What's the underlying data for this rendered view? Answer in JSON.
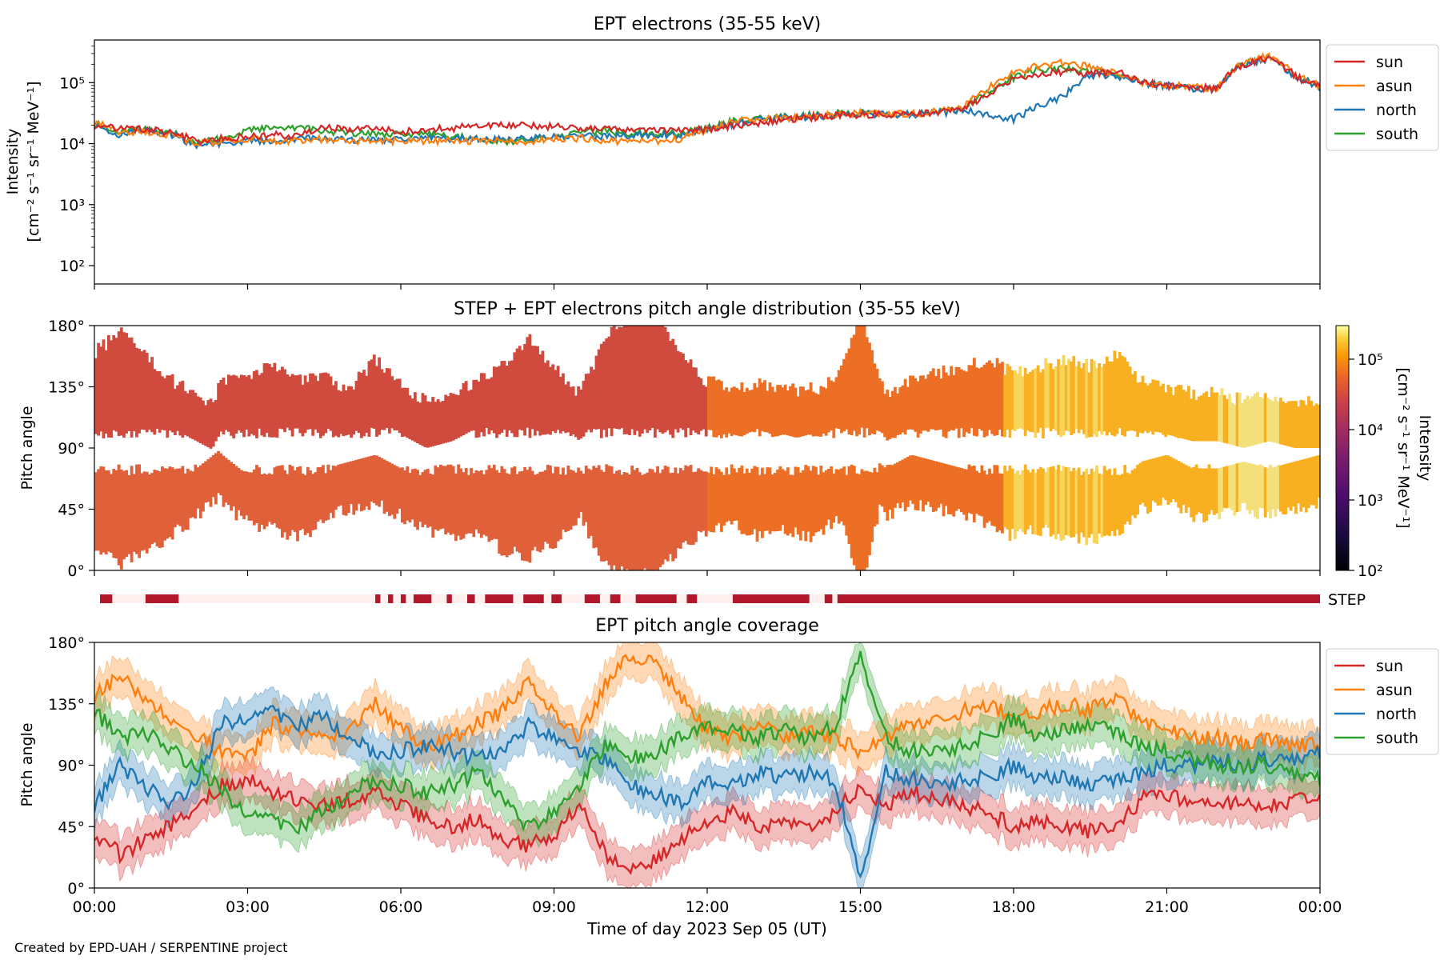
{
  "credit": "Created by EPD-UAH / SERPENTINE project",
  "xlabel": "Time of day 2023 Sep 05 (UT)",
  "x_ticks": [
    "00:00",
    "03:00",
    "06:00",
    "09:00",
    "12:00",
    "15:00",
    "18:00",
    "21:00",
    "00:00"
  ],
  "colors": {
    "sun": "#d62728",
    "asun": "#ff7f0e",
    "north": "#1f77b4",
    "south": "#2ca02c",
    "step_bar": "#b2182b",
    "step_bg": "#fdf0ee"
  },
  "chart_data": [
    {
      "type": "line",
      "title": "EPT electrons (35-55 keV)",
      "ylabel": "Intensity",
      "yunit": "[cm⁻² s⁻¹ sr⁻¹ MeV⁻¹]",
      "yscale": "log",
      "ylim": [
        50,
        500000
      ],
      "ytick_labels": [
        "10²",
        "10³",
        "10⁴",
        "10⁵"
      ],
      "ytick_values": [
        100,
        1000,
        10000,
        100000
      ],
      "xlim_hours": [
        0,
        24
      ],
      "legend": "right",
      "x_hours": [
        0,
        0.5,
        1,
        1.5,
        2,
        2.5,
        3,
        3.5,
        4,
        4.5,
        5,
        5.5,
        6,
        6.5,
        7,
        7.5,
        8,
        8.5,
        9,
        9.5,
        10,
        10.5,
        11,
        11.5,
        12,
        12.5,
        13,
        13.5,
        14,
        14.5,
        15,
        15.5,
        16,
        16.5,
        17,
        17.5,
        18,
        18.5,
        19,
        19.5,
        20,
        20.5,
        21,
        21.5,
        22,
        22.5,
        23,
        23.5,
        24
      ],
      "series": [
        {
          "name": "sun",
          "values": [
            20000,
            18000,
            17000,
            15000,
            11000,
            12000,
            13000,
            14000,
            13000,
            18000,
            17000,
            18000,
            16000,
            17000,
            18000,
            19000,
            20000,
            20000,
            19000,
            18000,
            18000,
            17000,
            17000,
            17000,
            17000,
            20000,
            22000,
            25000,
            27000,
            29000,
            30000,
            30000,
            31000,
            32000,
            35000,
            60000,
            110000,
            140000,
            150000,
            140000,
            150000,
            100000,
            90000,
            85000,
            80000,
            200000,
            260000,
            130000,
            85000
          ]
        },
        {
          "name": "asun",
          "values": [
            22000,
            15000,
            16000,
            14000,
            10000,
            11000,
            12000,
            11000,
            11000,
            12000,
            11000,
            11000,
            11000,
            11000,
            11000,
            11000,
            11000,
            11000,
            12000,
            12000,
            11000,
            11000,
            11000,
            12000,
            17000,
            22000,
            25000,
            26000,
            28000,
            30000,
            32000,
            30000,
            31000,
            33000,
            38000,
            80000,
            140000,
            190000,
            210000,
            180000,
            140000,
            100000,
            90000,
            85000,
            80000,
            220000,
            280000,
            140000,
            85000
          ]
        },
        {
          "name": "north",
          "values": [
            20000,
            14000,
            16000,
            14000,
            9000,
            10000,
            11000,
            11500,
            12000,
            12000,
            11500,
            12000,
            11500,
            12000,
            12000,
            12000,
            12000,
            12000,
            13000,
            13000,
            13000,
            14000,
            14000,
            14000,
            17000,
            21000,
            24000,
            26000,
            28000,
            29000,
            31000,
            30000,
            30000,
            32000,
            35000,
            30000,
            25000,
            40000,
            60000,
            130000,
            130000,
            95000,
            88000,
            82000,
            78000,
            190000,
            250000,
            125000,
            82000
          ]
        },
        {
          "name": "south",
          "values": [
            21000,
            16000,
            17000,
            15000,
            10000,
            12000,
            16000,
            20000,
            18000,
            16000,
            15000,
            15000,
            14000,
            14000,
            13000,
            12000,
            11000,
            11000,
            13000,
            15000,
            16000,
            15000,
            15000,
            15000,
            18000,
            23000,
            25000,
            27000,
            29000,
            31000,
            32000,
            30000,
            31000,
            33000,
            36000,
            70000,
            120000,
            160000,
            170000,
            150000,
            140000,
            95000,
            88000,
            82000,
            78000,
            200000,
            250000,
            130000,
            82000
          ]
        }
      ]
    },
    {
      "type": "heatmap",
      "title": "STEP + EPT electrons pitch angle distribution (35-55 keV)",
      "ylabel": "Pitch angle",
      "ylim": [
        0,
        180
      ],
      "ytick_labels": [
        "0°",
        "45°",
        "90°",
        "135°",
        "180°"
      ],
      "ytick_values": [
        0,
        45,
        90,
        135,
        180
      ],
      "colorbar_label": "Intensity",
      "colorbar_unit": "[cm⁻² s⁻¹ sr⁻¹ MeV⁻¹]",
      "colorbar_scale": "log",
      "colorbar_range": [
        100,
        300000
      ],
      "colorbar_tick_labels": [
        "10²",
        "10³",
        "10⁴",
        "10⁵"
      ],
      "colorbar_tick_values": [
        100,
        1000,
        10000,
        100000
      ],
      "step_label": "STEP",
      "step_coverage_hours": [
        [
          0.1,
          0.35
        ],
        [
          1.0,
          1.65
        ],
        [
          5.5,
          5.6
        ],
        [
          5.75,
          5.85
        ],
        [
          6.0,
          6.1
        ],
        [
          6.25,
          6.6
        ],
        [
          6.9,
          7.0
        ],
        [
          7.3,
          7.45
        ],
        [
          7.65,
          8.2
        ],
        [
          8.4,
          8.8
        ],
        [
          8.95,
          9.15
        ],
        [
          9.6,
          9.9
        ],
        [
          10.1,
          10.3
        ],
        [
          10.6,
          11.4
        ],
        [
          11.6,
          11.8
        ],
        [
          12.5,
          14.0
        ],
        [
          14.3,
          14.45
        ],
        [
          14.55,
          24.0
        ]
      ]
    },
    {
      "type": "line",
      "title": "EPT pitch angle coverage",
      "ylabel": "Pitch angle",
      "ylim": [
        0,
        180
      ],
      "ytick_labels": [
        "0°",
        "45°",
        "90°",
        "135°",
        "180°"
      ],
      "ytick_values": [
        0,
        45,
        90,
        135,
        180
      ],
      "xlim_hours": [
        0,
        24
      ],
      "legend": "right",
      "x_hours": [
        0,
        0.5,
        1,
        1.5,
        2,
        2.5,
        3,
        3.5,
        4,
        4.5,
        5,
        5.5,
        6,
        6.5,
        7,
        7.5,
        8,
        8.5,
        9,
        9.5,
        10,
        10.5,
        11,
        11.5,
        12,
        12.5,
        13,
        13.5,
        14,
        14.5,
        15,
        15.5,
        16,
        16.5,
        17,
        17.5,
        18,
        18.5,
        19,
        19.5,
        20,
        20.5,
        21,
        21.5,
        22,
        22.5,
        23,
        23.5,
        24
      ],
      "series": [
        {
          "name": "sun",
          "values": [
            40,
            25,
            35,
            45,
            60,
            75,
            80,
            70,
            65,
            60,
            65,
            70,
            60,
            50,
            45,
            50,
            35,
            30,
            40,
            60,
            25,
            15,
            20,
            35,
            50,
            55,
            45,
            50,
            45,
            55,
            75,
            60,
            70,
            65,
            60,
            55,
            45,
            50,
            45,
            42,
            45,
            65,
            70,
            60,
            60,
            65,
            60,
            65,
            70
          ]
        },
        {
          "name": "asun",
          "values": [
            140,
            155,
            140,
            120,
            110,
            100,
            95,
            120,
            115,
            110,
            115,
            135,
            115,
            105,
            110,
            120,
            130,
            150,
            130,
            110,
            150,
            170,
            165,
            140,
            115,
            110,
            120,
            110,
            115,
            110,
            100,
            110,
            120,
            125,
            130,
            135,
            125,
            130,
            135,
            130,
            140,
            120,
            115,
            110,
            110,
            105,
            110,
            105,
            105
          ]
        },
        {
          "name": "north",
          "values": [
            60,
            90,
            75,
            60,
            80,
            120,
            125,
            130,
            120,
            125,
            110,
            100,
            100,
            105,
            100,
            95,
            100,
            120,
            110,
            100,
            95,
            75,
            70,
            60,
            80,
            75,
            85,
            80,
            85,
            80,
            5,
            85,
            80,
            75,
            80,
            80,
            90,
            80,
            80,
            75,
            80,
            85,
            90,
            90,
            95,
            90,
            95,
            95,
            100
          ]
        },
        {
          "name": "south",
          "values": [
            130,
            110,
            115,
            100,
            90,
            70,
            55,
            50,
            45,
            55,
            70,
            80,
            75,
            70,
            75,
            85,
            65,
            45,
            55,
            75,
            105,
            95,
            100,
            110,
            120,
            115,
            110,
            115,
            110,
            120,
            170,
            110,
            100,
            100,
            105,
            110,
            125,
            110,
            115,
            120,
            115,
            105,
            100,
            95,
            90,
            90,
            90,
            85,
            80
          ]
        }
      ]
    }
  ]
}
